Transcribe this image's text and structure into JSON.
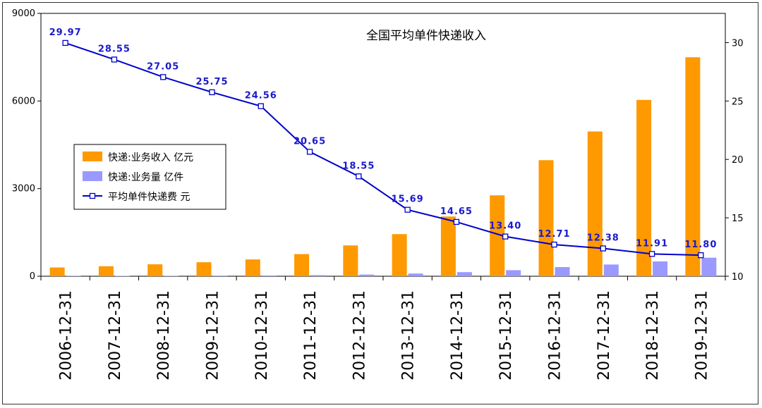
{
  "chart_data": {
    "type": "bar",
    "title": "全国平均单件快递收入",
    "categories": [
      "2006-12-31",
      "2007-12-31",
      "2008-12-31",
      "2009-12-31",
      "2010-12-31",
      "2011-12-31",
      "2012-12-31",
      "2013-12-31",
      "2014-12-31",
      "2015-12-31",
      "2016-12-31",
      "2017-12-31",
      "2018-12-31",
      "2019-12-31"
    ],
    "left_axis": {
      "ylim": [
        0,
        9000
      ],
      "ticks": [
        "0",
        "3000",
        "6000",
        "9000"
      ]
    },
    "right_axis": {
      "ylim": [
        10,
        32.5
      ],
      "ticks": [
        "10",
        "15",
        "20",
        "25",
        "30"
      ]
    },
    "series": [
      {
        "name": "快递:业务收入 亿元",
        "kind": "bar",
        "axis": "left",
        "color": "#FF9900",
        "values": [
          300,
          342,
          408,
          479,
          575,
          758,
          1055,
          1442,
          2045,
          2770,
          3974,
          4957,
          6038,
          7498
        ]
      },
      {
        "name": "快递:业务量 亿件",
        "kind": "bar",
        "axis": "left",
        "color": "#9999FF",
        "values": [
          10,
          12,
          15,
          19,
          23,
          37,
          57,
          92,
          140,
          207,
          313,
          401,
          507,
          635
        ]
      },
      {
        "name": "平均单件快递费 元",
        "kind": "line",
        "axis": "right",
        "color": "#0000CC",
        "values": [
          29.97,
          28.55,
          27.05,
          25.75,
          24.56,
          20.65,
          18.55,
          15.69,
          14.65,
          13.4,
          12.71,
          12.38,
          11.91,
          11.8
        ],
        "labels": [
          "29.97",
          "28.55",
          "27.05",
          "25.75",
          "24.56",
          "20.65",
          "18.55",
          "15.69",
          "14.65",
          "13.40",
          "12.71",
          "12.38",
          "11.91",
          "11.80"
        ]
      }
    ],
    "legend_position": "left"
  }
}
